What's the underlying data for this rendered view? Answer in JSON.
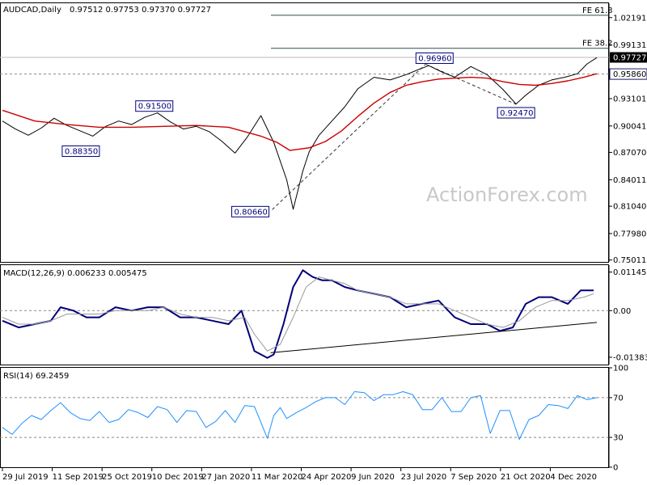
{
  "header": {
    "symbol_line": "AUDCAD,Daily",
    "ohlc": "0.97512 0.97753 0.97370 0.97727"
  },
  "watermark": "ActionForex.com",
  "colors": {
    "price": "#000000",
    "ma": "#cc0000",
    "macd": "#00007a",
    "signal": "#999999",
    "rsi": "#1e90ff",
    "annotation": "#00007a",
    "fib": "#2f4f4f"
  },
  "chart_data": [
    {
      "type": "line",
      "panel": "price",
      "title": "AUDCAD,Daily",
      "x_labels": [
        "29 Jul 2019",
        "11 Sep 2019",
        "25 Oct 2019",
        "10 Dec 2019",
        "27 Jan 2020",
        "11 Mar 2020",
        "24 Apr 2020",
        "9 Jun 2020",
        "23 Jul 2020",
        "7 Sep 2020",
        "21 Oct 2020",
        "4 Dec 2020"
      ],
      "y_ticks": [
        "1.02191",
        "0.99131",
        "0.96071",
        "0.93101",
        "0.90041",
        "0.87070",
        "0.84011",
        "0.81040",
        "0.77980",
        "0.75011"
      ],
      "ylim": [
        0.748,
        1.038
      ],
      "x_range": [
        0,
        370
      ],
      "last_price_label": "0.97727",
      "level_label": "0.95860",
      "levels": [
        {
          "name": "FE 61.8",
          "value": 1.0245
        },
        {
          "name": "FE 38.2",
          "value": 0.9875
        }
      ],
      "dashed_level": 0.9586,
      "series": [
        {
          "role": "price",
          "x": [
            0,
            8,
            16,
            24,
            32,
            40,
            48,
            56,
            64,
            72,
            80,
            88,
            96,
            104,
            112,
            120,
            128,
            136,
            144,
            152,
            160,
            168,
            176,
            180,
            186,
            190,
            196,
            204,
            212,
            220,
            230,
            240,
            250,
            258,
            264,
            272,
            280,
            290,
            300,
            310,
            318,
            324,
            332,
            340,
            348,
            356,
            362,
            368
          ],
          "y": [
            0.906,
            0.897,
            0.89,
            0.898,
            0.909,
            0.901,
            0.895,
            0.889,
            0.9,
            0.906,
            0.902,
            0.91,
            0.915,
            0.905,
            0.897,
            0.9,
            0.894,
            0.883,
            0.87,
            0.889,
            0.912,
            0.882,
            0.84,
            0.807,
            0.85,
            0.872,
            0.89,
            0.906,
            0.922,
            0.942,
            0.955,
            0.952,
            0.958,
            0.964,
            0.968,
            0.961,
            0.955,
            0.967,
            0.958,
            0.941,
            0.925,
            0.935,
            0.946,
            0.952,
            0.955,
            0.959,
            0.97,
            0.977
          ]
        },
        {
          "role": "ma",
          "x": [
            0,
            20,
            40,
            60,
            80,
            100,
            120,
            140,
            160,
            170,
            178,
            190,
            200,
            210,
            220,
            230,
            240,
            250,
            260,
            270,
            280,
            290,
            300,
            310,
            320,
            330,
            340,
            350,
            360,
            368
          ],
          "y": [
            0.918,
            0.906,
            0.902,
            0.899,
            0.899,
            0.9,
            0.901,
            0.899,
            0.889,
            0.882,
            0.873,
            0.876,
            0.883,
            0.895,
            0.911,
            0.926,
            0.938,
            0.946,
            0.95,
            0.953,
            0.954,
            0.955,
            0.954,
            0.95,
            0.947,
            0.946,
            0.948,
            0.951,
            0.955,
            0.959
          ]
        }
      ],
      "trendline": {
        "x": [
          167,
          262
        ],
        "y": [
          0.8066,
          0.9696
        ]
      },
      "trendline2": {
        "x": [
          262,
          318
        ],
        "y": [
          0.9696,
          0.9247
        ]
      },
      "annotations": [
        {
          "label": "0.88350",
          "x": 32,
          "y": 0.8835
        },
        {
          "label": "0.91500",
          "x": 94,
          "y": 0.915
        },
        {
          "label": "0.80660",
          "x": 167,
          "y": 0.8066
        },
        {
          "label": "0.96960",
          "x": 262,
          "y": 0.9696
        },
        {
          "label": "0.92470",
          "x": 318,
          "y": 0.9247
        }
      ]
    },
    {
      "type": "line",
      "panel": "macd",
      "title": "MACD(12,26,9) 0.006233 0.005475",
      "y_ticks": [
        "0.011452",
        "0.00",
        "-0.013831"
      ],
      "ylim": [
        -0.016,
        0.0135
      ],
      "series": [
        {
          "role": "macd",
          "x": [
            0,
            10,
            20,
            30,
            36,
            44,
            52,
            60,
            70,
            80,
            90,
            100,
            110,
            120,
            130,
            140,
            148,
            156,
            164,
            168,
            174,
            180,
            186,
            192,
            198,
            204,
            212,
            220,
            230,
            240,
            250,
            260,
            270,
            280,
            290,
            300,
            308,
            316,
            324,
            332,
            340,
            350,
            358,
            366
          ],
          "y": [
            -0.003,
            -0.005,
            -0.004,
            -0.003,
            0.001,
            0.0,
            -0.002,
            -0.002,
            0.001,
            0.0,
            0.001,
            0.001,
            -0.002,
            -0.002,
            -0.003,
            -0.004,
            0.0,
            -0.012,
            -0.014,
            -0.013,
            -0.004,
            0.007,
            0.012,
            0.01,
            0.009,
            0.009,
            0.007,
            0.006,
            0.005,
            0.004,
            0.001,
            0.002,
            0.003,
            -0.002,
            -0.004,
            -0.004,
            -0.006,
            -0.005,
            0.002,
            0.004,
            0.004,
            0.002,
            0.006,
            0.006
          ]
        },
        {
          "role": "signal",
          "x": [
            0,
            10,
            20,
            30,
            40,
            50,
            60,
            70,
            80,
            90,
            100,
            110,
            120,
            130,
            140,
            150,
            156,
            164,
            172,
            180,
            188,
            196,
            204,
            212,
            220,
            230,
            240,
            250,
            260,
            270,
            280,
            290,
            300,
            310,
            320,
            330,
            340,
            350,
            360,
            366
          ],
          "y": [
            -0.002,
            -0.004,
            -0.004,
            -0.003,
            -0.001,
            -0.001,
            -0.001,
            0.0,
            0.0,
            0.0,
            0.001,
            -0.001,
            -0.002,
            -0.002,
            -0.003,
            -0.002,
            -0.007,
            -0.012,
            -0.01,
            -0.002,
            0.007,
            0.01,
            0.009,
            0.008,
            0.006,
            0.005,
            0.004,
            0.002,
            0.002,
            0.002,
            0.0,
            -0.002,
            -0.004,
            -0.005,
            -0.003,
            0.001,
            0.003,
            0.003,
            0.004,
            0.005
          ]
        }
      ],
      "trendline": {
        "x": [
          166,
          368
        ],
        "y": [
          -0.0125,
          -0.0035
        ]
      }
    },
    {
      "type": "line",
      "panel": "rsi",
      "title": "RSI(14) 69.2459",
      "y_ticks": [
        "100",
        "70",
        "30",
        "0"
      ],
      "ylim": [
        0,
        100
      ],
      "levels": [
        70,
        30
      ],
      "series": [
        {
          "role": "rsi",
          "x": [
            0,
            6,
            12,
            18,
            24,
            30,
            36,
            42,
            48,
            54,
            60,
            66,
            72,
            78,
            84,
            90,
            96,
            102,
            108,
            114,
            120,
            126,
            132,
            138,
            144,
            150,
            156,
            160,
            164,
            168,
            172,
            176,
            182,
            188,
            194,
            200,
            206,
            212,
            218,
            224,
            230,
            236,
            242,
            248,
            254,
            260,
            266,
            272,
            278,
            284,
            290,
            296,
            302,
            308,
            314,
            320,
            326,
            332,
            338,
            344,
            350,
            356,
            362,
            368
          ],
          "y": [
            40,
            33,
            44,
            52,
            48,
            57,
            65,
            55,
            49,
            47,
            56,
            45,
            48,
            58,
            55,
            50,
            61,
            58,
            45,
            57,
            56,
            40,
            46,
            57,
            45,
            62,
            61,
            45,
            29,
            52,
            60,
            49,
            55,
            60,
            66,
            70,
            70,
            63,
            76,
            75,
            67,
            73,
            73,
            76,
            73,
            58,
            58,
            70,
            56,
            56,
            70,
            72,
            34,
            57,
            57,
            28,
            48,
            52,
            63,
            62,
            59,
            72,
            68,
            70
          ]
        }
      ]
    }
  ]
}
